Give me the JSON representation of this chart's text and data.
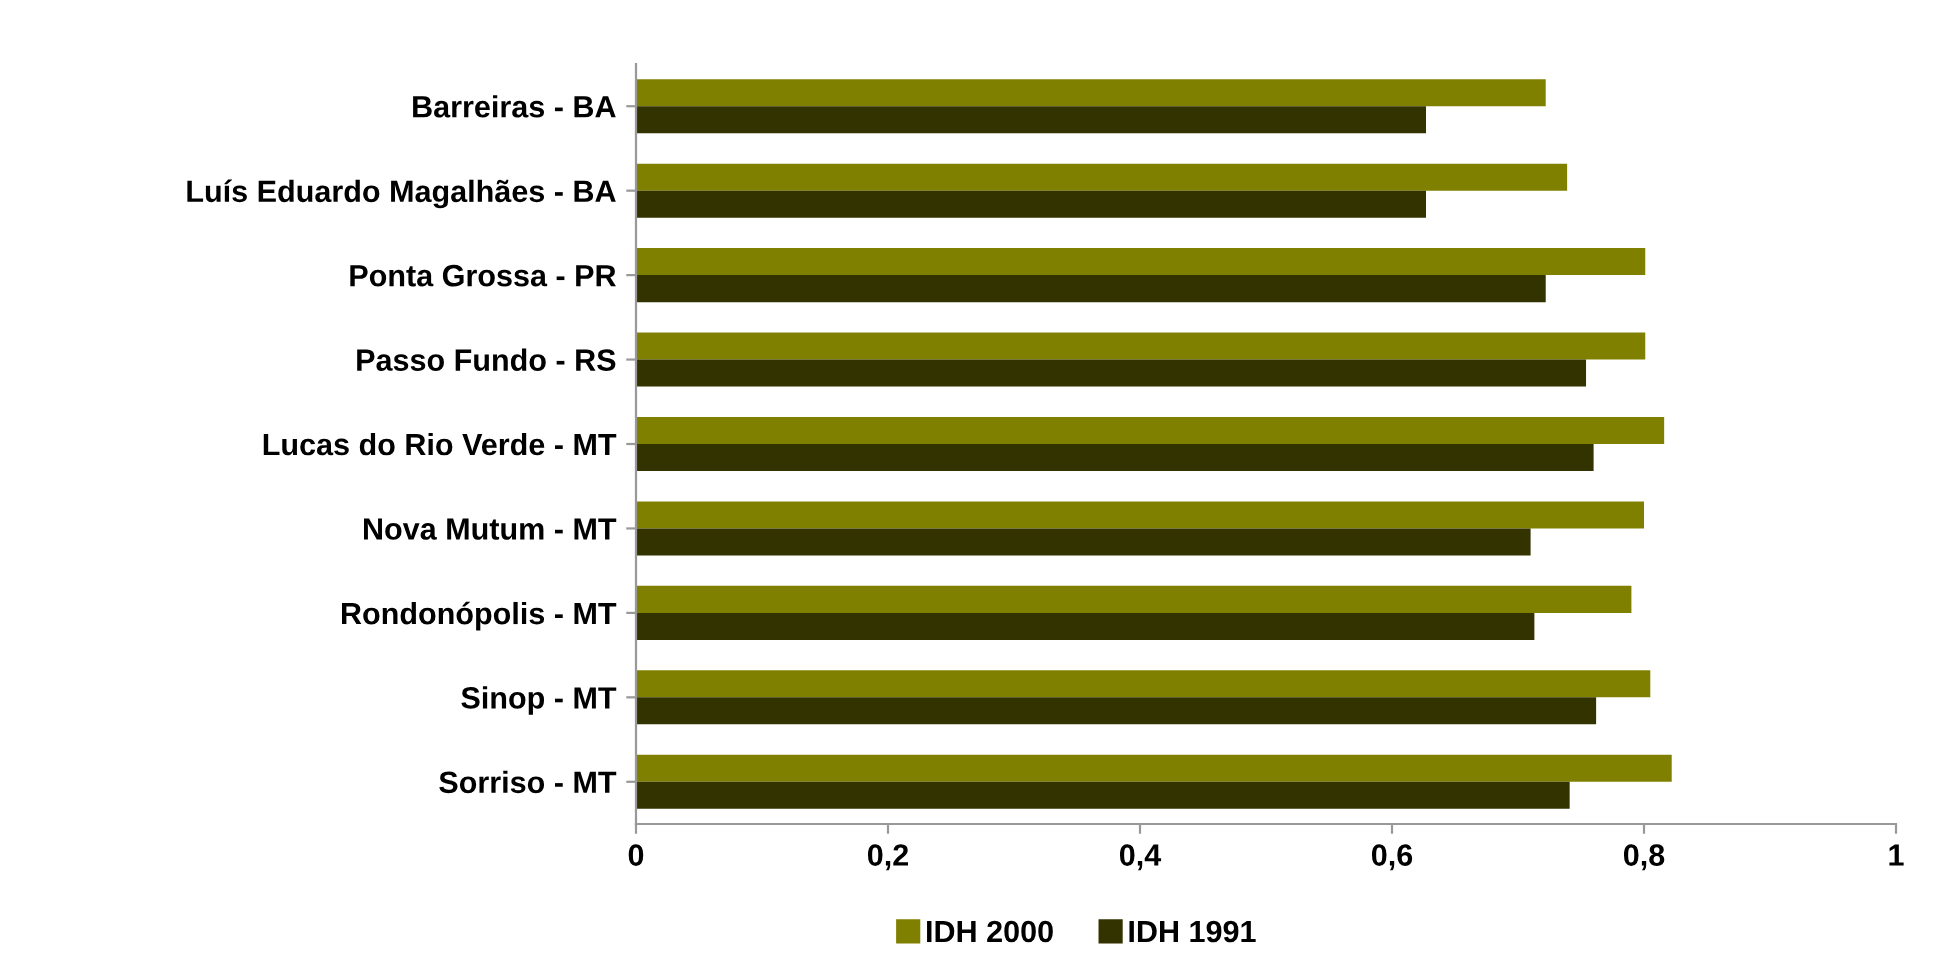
{
  "chart_data": {
    "type": "bar",
    "orientation": "horizontal",
    "categories": [
      "Barreiras - BA",
      "Luís Eduardo Magalhães - BA",
      "Ponta Grossa - PR",
      "Passo Fundo - RS",
      "Lucas do Rio Verde - MT",
      "Nova Mutum - MT",
      "Rondonópolis - MT",
      "Sinop - MT",
      "Sorriso - MT"
    ],
    "series": [
      {
        "name": "IDH 2000",
        "color": "#808000",
        "values": [
          0.722,
          0.739,
          0.801,
          0.801,
          0.816,
          0.8,
          0.79,
          0.805,
          0.822
        ]
      },
      {
        "name": "IDH 1991",
        "color": "#333300",
        "values": [
          0.627,
          0.627,
          0.722,
          0.754,
          0.76,
          0.71,
          0.713,
          0.762,
          0.741
        ]
      }
    ],
    "xlim": [
      0,
      1
    ],
    "xticks": [
      {
        "value": 0,
        "label": "0"
      },
      {
        "value": 0.2,
        "label": "0,2"
      },
      {
        "value": 0.4,
        "label": "0,4"
      },
      {
        "value": 0.6,
        "label": "0,6"
      },
      {
        "value": 0.8,
        "label": "0,8"
      },
      {
        "value": 1,
        "label": "1"
      }
    ],
    "grid": false,
    "legend": "bottom"
  }
}
